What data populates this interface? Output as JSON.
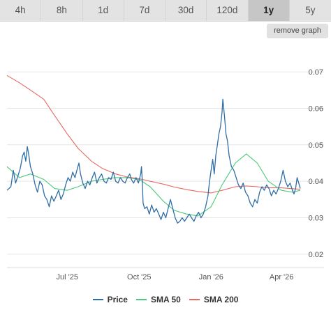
{
  "tabs": [
    {
      "label": "4h",
      "active": false
    },
    {
      "label": "8h",
      "active": false
    },
    {
      "label": "1d",
      "active": false
    },
    {
      "label": "7d",
      "active": false
    },
    {
      "label": "30d",
      "active": false
    },
    {
      "label": "120d",
      "active": false
    },
    {
      "label": "1y",
      "active": true
    },
    {
      "label": "5y",
      "active": false
    }
  ],
  "remove_graph_label": "remove graph",
  "chart_data": {
    "type": "line",
    "title": "",
    "xlabel": "",
    "ylabel": "",
    "x_range": [
      "2025-04-15",
      "2026-04-25"
    ],
    "ylim": [
      0.015,
      0.079
    ],
    "y_ticks": [
      {
        "value": 0.02,
        "label": "0.02"
      },
      {
        "value": 0.03,
        "label": "0.03"
      },
      {
        "value": 0.04,
        "label": "0.04"
      },
      {
        "value": 0.05,
        "label": "0.05"
      },
      {
        "value": 0.06,
        "label": "0.06"
      },
      {
        "value": 0.07,
        "label": "0.07"
      }
    ],
    "x_ticks": [
      {
        "date": "2025-07-01",
        "label": "Jul '25"
      },
      {
        "date": "2025-10-01",
        "label": "Oct '25"
      },
      {
        "date": "2026-01-01",
        "label": "Jan '26"
      },
      {
        "date": "2026-04-01",
        "label": "Apr '26"
      }
    ],
    "grid": true,
    "legend_position": "bottom",
    "series": [
      {
        "name": "Price",
        "color": "#2f6ea6",
        "points": [
          [
            "2025-04-15",
            0.0375
          ],
          [
            "2025-04-20",
            0.0385
          ],
          [
            "2025-04-23",
            0.043
          ],
          [
            "2025-04-26",
            0.0395
          ],
          [
            "2025-04-29",
            0.0415
          ],
          [
            "2025-05-02",
            0.0435
          ],
          [
            "2025-05-05",
            0.047
          ],
          [
            "2025-05-07",
            0.048
          ],
          [
            "2025-05-09",
            0.0455
          ],
          [
            "2025-05-11",
            0.0495
          ],
          [
            "2025-05-13",
            0.047
          ],
          [
            "2025-05-15",
            0.044
          ],
          [
            "2025-05-18",
            0.042
          ],
          [
            "2025-05-21",
            0.039
          ],
          [
            "2025-05-24",
            0.037
          ],
          [
            "2025-05-27",
            0.04
          ],
          [
            "2025-05-30",
            0.039
          ],
          [
            "2025-06-02",
            0.036
          ],
          [
            "2025-06-05",
            0.035
          ],
          [
            "2025-06-08",
            0.033
          ],
          [
            "2025-06-11",
            0.036
          ],
          [
            "2025-06-14",
            0.0345
          ],
          [
            "2025-06-17",
            0.036
          ],
          [
            "2025-06-20",
            0.0375
          ],
          [
            "2025-06-23",
            0.035
          ],
          [
            "2025-06-26",
            0.0365
          ],
          [
            "2025-06-29",
            0.039
          ],
          [
            "2025-07-02",
            0.041
          ],
          [
            "2025-07-05",
            0.04
          ],
          [
            "2025-07-08",
            0.0425
          ],
          [
            "2025-07-11",
            0.041
          ],
          [
            "2025-07-14",
            0.0435
          ],
          [
            "2025-07-16",
            0.045
          ],
          [
            "2025-07-18",
            0.042
          ],
          [
            "2025-07-21",
            0.0395
          ],
          [
            "2025-07-24",
            0.038
          ],
          [
            "2025-07-27",
            0.04
          ],
          [
            "2025-07-30",
            0.039
          ],
          [
            "2025-08-02",
            0.041
          ],
          [
            "2025-08-05",
            0.0425
          ],
          [
            "2025-08-08",
            0.0395
          ],
          [
            "2025-08-11",
            0.041
          ],
          [
            "2025-08-14",
            0.042
          ],
          [
            "2025-08-17",
            0.04
          ],
          [
            "2025-08-20",
            0.0395
          ],
          [
            "2025-08-23",
            0.041
          ],
          [
            "2025-08-26",
            0.0405
          ],
          [
            "2025-08-29",
            0.0425
          ],
          [
            "2025-09-01",
            0.04
          ],
          [
            "2025-09-04",
            0.0395
          ],
          [
            "2025-09-07",
            0.041
          ],
          [
            "2025-09-10",
            0.04
          ],
          [
            "2025-09-13",
            0.0395
          ],
          [
            "2025-09-16",
            0.041
          ],
          [
            "2025-09-19",
            0.042
          ],
          [
            "2025-09-21",
            0.0405
          ],
          [
            "2025-09-24",
            0.0395
          ],
          [
            "2025-09-27",
            0.041
          ],
          [
            "2025-09-30",
            0.0395
          ],
          [
            "2025-10-03",
            0.042
          ],
          [
            "2025-10-04",
            0.044
          ],
          [
            "2025-10-05",
            0.04
          ],
          [
            "2025-10-06",
            0.034
          ],
          [
            "2025-10-08",
            0.0325
          ],
          [
            "2025-10-11",
            0.033
          ],
          [
            "2025-10-14",
            0.031
          ],
          [
            "2025-10-17",
            0.0335
          ],
          [
            "2025-10-20",
            0.0315
          ],
          [
            "2025-10-23",
            0.0325
          ],
          [
            "2025-10-26",
            0.031
          ],
          [
            "2025-10-29",
            0.0295
          ],
          [
            "2025-11-01",
            0.0315
          ],
          [
            "2025-11-04",
            0.03
          ],
          [
            "2025-11-07",
            0.0325
          ],
          [
            "2025-11-10",
            0.035
          ],
          [
            "2025-11-13",
            0.0325
          ],
          [
            "2025-11-16",
            0.03
          ],
          [
            "2025-11-19",
            0.0285
          ],
          [
            "2025-11-22",
            0.029
          ],
          [
            "2025-11-25",
            0.03
          ],
          [
            "2025-11-28",
            0.029
          ],
          [
            "2025-12-01",
            0.03
          ],
          [
            "2025-12-04",
            0.031
          ],
          [
            "2025-12-07",
            0.03
          ],
          [
            "2025-12-10",
            0.029
          ],
          [
            "2025-12-13",
            0.0305
          ],
          [
            "2025-12-16",
            0.0315
          ],
          [
            "2025-12-19",
            0.03
          ],
          [
            "2025-12-22",
            0.031
          ],
          [
            "2025-12-25",
            0.033
          ],
          [
            "2025-12-28",
            0.036
          ],
          [
            "2025-12-30",
            0.04
          ],
          [
            "2026-01-01",
            0.043
          ],
          [
            "2026-01-03",
            0.046
          ],
          [
            "2026-01-05",
            0.042
          ],
          [
            "2026-01-07",
            0.047
          ],
          [
            "2026-01-09",
            0.05
          ],
          [
            "2026-01-11",
            0.053
          ],
          [
            "2026-01-13",
            0.055
          ],
          [
            "2026-01-15",
            0.059
          ],
          [
            "2026-01-16",
            0.0625
          ],
          [
            "2026-01-18",
            0.058
          ],
          [
            "2026-01-20",
            0.053
          ],
          [
            "2026-01-22",
            0.051
          ],
          [
            "2026-01-24",
            0.047
          ],
          [
            "2026-01-27",
            0.044
          ],
          [
            "2026-01-30",
            0.043
          ],
          [
            "2026-02-02",
            0.041
          ],
          [
            "2026-02-05",
            0.039
          ],
          [
            "2026-02-08",
            0.038
          ],
          [
            "2026-02-11",
            0.0395
          ],
          [
            "2026-02-14",
            0.037
          ],
          [
            "2026-02-17",
            0.036
          ],
          [
            "2026-02-20",
            0.034
          ],
          [
            "2026-02-23",
            0.033
          ],
          [
            "2026-02-26",
            0.035
          ],
          [
            "2026-03-01",
            0.034
          ],
          [
            "2026-03-04",
            0.037
          ],
          [
            "2026-03-07",
            0.0385
          ],
          [
            "2026-03-10",
            0.0375
          ],
          [
            "2026-03-13",
            0.039
          ],
          [
            "2026-03-16",
            0.038
          ],
          [
            "2026-03-19",
            0.036
          ],
          [
            "2026-03-22",
            0.0375
          ],
          [
            "2026-03-25",
            0.0365
          ],
          [
            "2026-03-28",
            0.038
          ],
          [
            "2026-03-31",
            0.04
          ],
          [
            "2026-04-03",
            0.043
          ],
          [
            "2026-04-06",
            0.04
          ],
          [
            "2026-04-09",
            0.0385
          ],
          [
            "2026-04-12",
            0.0395
          ],
          [
            "2026-04-15",
            0.0375
          ],
          [
            "2026-04-17",
            0.0365
          ],
          [
            "2026-04-19",
            0.038
          ],
          [
            "2026-04-21",
            0.041
          ],
          [
            "2026-04-23",
            0.0395
          ],
          [
            "2026-04-25",
            0.038
          ]
        ]
      },
      {
        "name": "SMA 50",
        "color": "#4cc97a",
        "points": [
          [
            "2025-04-15",
            0.044
          ],
          [
            "2025-05-01",
            0.041
          ],
          [
            "2025-05-15",
            0.042
          ],
          [
            "2025-06-01",
            0.0405
          ],
          [
            "2025-06-15",
            0.038
          ],
          [
            "2025-07-01",
            0.0375
          ],
          [
            "2025-07-15",
            0.0385
          ],
          [
            "2025-08-01",
            0.04
          ],
          [
            "2025-08-15",
            0.0405
          ],
          [
            "2025-09-01",
            0.041
          ],
          [
            "2025-09-15",
            0.041
          ],
          [
            "2025-10-01",
            0.0405
          ],
          [
            "2025-10-15",
            0.0385
          ],
          [
            "2025-11-01",
            0.0345
          ],
          [
            "2025-11-15",
            0.032
          ],
          [
            "2025-12-01",
            0.031
          ],
          [
            "2025-12-15",
            0.0305
          ],
          [
            "2026-01-01",
            0.033
          ],
          [
            "2026-01-15",
            0.039
          ],
          [
            "2026-02-01",
            0.045
          ],
          [
            "2026-02-15",
            0.0475
          ],
          [
            "2026-03-01",
            0.045
          ],
          [
            "2026-03-15",
            0.04
          ],
          [
            "2026-04-01",
            0.0375
          ],
          [
            "2026-04-15",
            0.037
          ],
          [
            "2026-04-25",
            0.0375
          ]
        ]
      },
      {
        "name": "SMA 200",
        "color": "#e8685f",
        "points": [
          [
            "2025-04-15",
            0.069
          ],
          [
            "2025-05-01",
            0.067
          ],
          [
            "2025-05-15",
            0.065
          ],
          [
            "2025-06-01",
            0.0625
          ],
          [
            "2025-06-15",
            0.058
          ],
          [
            "2025-07-01",
            0.053
          ],
          [
            "2025-07-15",
            0.049
          ],
          [
            "2025-08-01",
            0.0455
          ],
          [
            "2025-08-15",
            0.0435
          ],
          [
            "2025-09-01",
            0.042
          ],
          [
            "2025-09-15",
            0.0412
          ],
          [
            "2025-10-01",
            0.0407
          ],
          [
            "2025-10-15",
            0.04
          ],
          [
            "2025-11-01",
            0.0392
          ],
          [
            "2025-11-15",
            0.0384
          ],
          [
            "2025-12-01",
            0.0377
          ],
          [
            "2025-12-15",
            0.0372
          ],
          [
            "2026-01-01",
            0.0368
          ],
          [
            "2026-01-15",
            0.0375
          ],
          [
            "2026-02-01",
            0.0385
          ],
          [
            "2026-02-15",
            0.0387
          ],
          [
            "2026-03-01",
            0.0385
          ],
          [
            "2026-03-15",
            0.0382
          ],
          [
            "2026-04-01",
            0.0382
          ],
          [
            "2026-04-25",
            0.0378
          ]
        ]
      }
    ]
  }
}
